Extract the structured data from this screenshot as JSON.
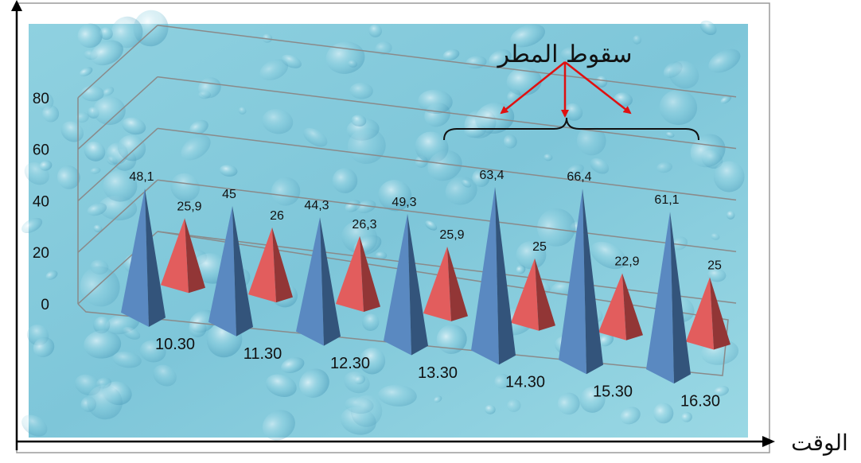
{
  "chart_data": {
    "type": "bar",
    "style": "3d-pyramid",
    "categories": [
      "10.30",
      "11.30",
      "12.30",
      "13.30",
      "14.30",
      "15.30",
      "16.30"
    ],
    "series": [
      {
        "color": "#4f81bd",
        "values": [
          48.1,
          45,
          44.3,
          49.3,
          63.4,
          66.4,
          61.1
        ],
        "value_labels": [
          "48,1",
          "45",
          "44,3",
          "49,3",
          "63,4",
          "66,4",
          "61,1"
        ]
      },
      {
        "color": "#e05353",
        "values": [
          25.9,
          26,
          26.3,
          25.9,
          25,
          22.9,
          25
        ],
        "value_labels": [
          "25,9",
          "26",
          "26,3",
          "25,9",
          "25",
          "22,9",
          "25"
        ]
      }
    ],
    "y_ticks": [
      "0",
      "20",
      "40",
      "60",
      "80"
    ],
    "ylim": [
      0,
      80
    ],
    "grid": true,
    "legend": "none",
    "x_axis_title": "الوقت",
    "annotation": {
      "text": "سقوط المطر",
      "color": "#e01010"
    },
    "background": "water-drops texture"
  }
}
